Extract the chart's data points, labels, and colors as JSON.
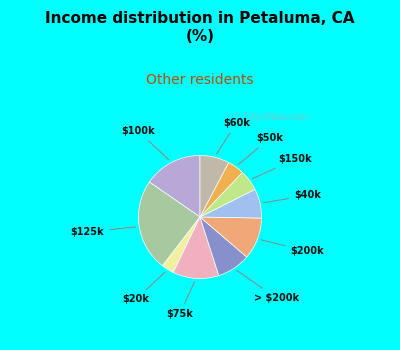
{
  "title": "Income distribution in Petaluma, CA\n(%)",
  "subtitle": "Other residents",
  "title_color": "#000000",
  "subtitle_color": "#b05010",
  "bg_cyan": "#00ffff",
  "bg_chart": "#d8f0e0",
  "watermark": "ⓘ City-Data.com",
  "labels": [
    "$100k",
    "$125k",
    "$20k",
    "$75k",
    "> $200k",
    "$200k",
    "$40k",
    "$150k",
    "$50k",
    "$60k"
  ],
  "values": [
    14,
    22,
    3,
    11,
    8,
    10,
    7,
    5,
    4,
    7
  ],
  "colors": [
    "#b8a8d8",
    "#a8c8a0",
    "#f0f0a0",
    "#f0b0c0",
    "#8890cc",
    "#f0a878",
    "#a0c0f0",
    "#c0e888",
    "#f0b050",
    "#c0b8a8"
  ],
  "startangle": 90
}
